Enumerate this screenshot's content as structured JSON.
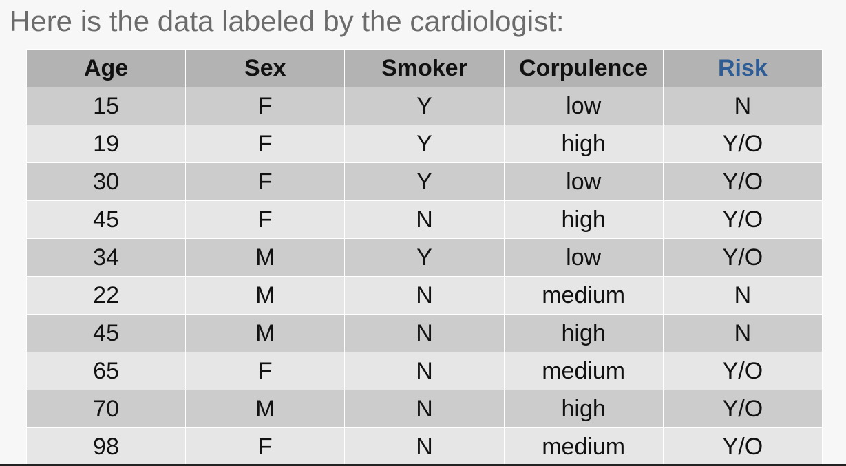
{
  "heading": "Here is the data labeled by the cardiologist:",
  "colors": {
    "risk_header": "#2e5c94",
    "header_bg": "#b3b3b3",
    "row_dark": "#cccccc",
    "row_light": "#e6e6e6"
  },
  "table": {
    "columns": [
      "Age",
      "Sex",
      "Smoker",
      "Corpulence",
      "Risk"
    ],
    "rows": [
      [
        "15",
        "F",
        "Y",
        "low",
        "N"
      ],
      [
        "19",
        "F",
        "Y",
        "high",
        "Y/O"
      ],
      [
        "30",
        "F",
        "Y",
        "low",
        "Y/O"
      ],
      [
        "45",
        "F",
        "N",
        "high",
        "Y/O"
      ],
      [
        "34",
        "M",
        "Y",
        "low",
        "Y/O"
      ],
      [
        "22",
        "M",
        "N",
        "medium",
        "N"
      ],
      [
        "45",
        "M",
        "N",
        "high",
        "N"
      ],
      [
        "65",
        "F",
        "N",
        "medium",
        "Y/O"
      ],
      [
        "70",
        "M",
        "N",
        "high",
        "Y/O"
      ],
      [
        "98",
        "F",
        "N",
        "medium",
        "Y/O"
      ]
    ]
  }
}
